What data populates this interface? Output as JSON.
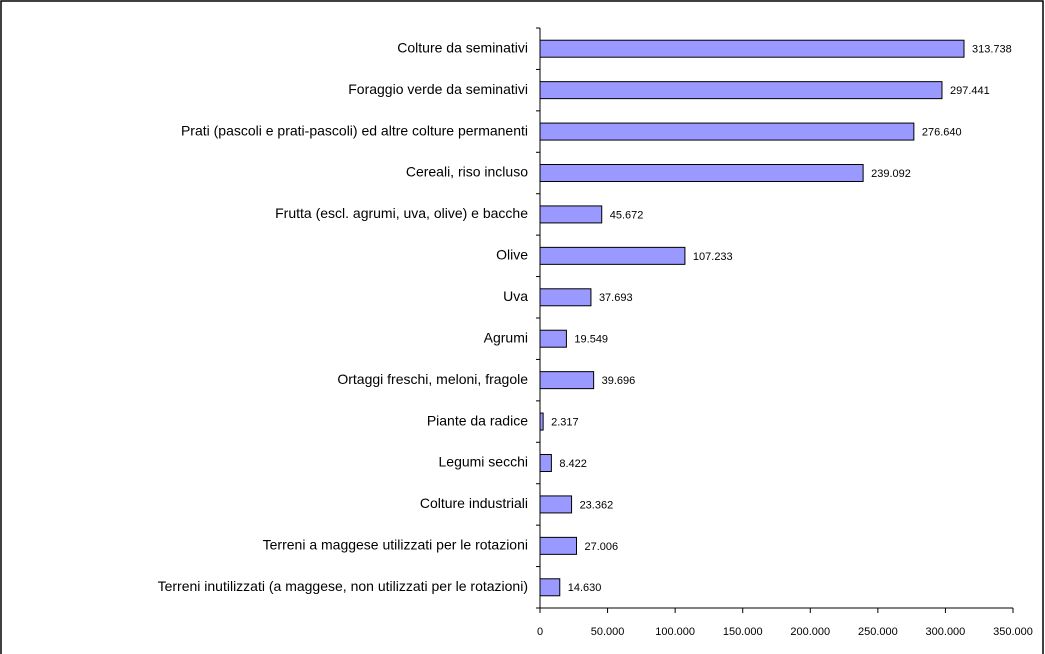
{
  "chart_data": {
    "type": "bar",
    "orientation": "horizontal",
    "categories": [
      "Colture da seminativi",
      "Foraggio verde da seminativi",
      "Prati (pascoli e prati-pascoli) ed altre colture permanenti",
      "Cereali, riso incluso",
      "Frutta (escl. agrumi, uva, olive) e bacche",
      "Olive",
      "Uva",
      "Agrumi",
      "Ortaggi freschi, meloni, fragole",
      "Piante da radice",
      "Legumi secchi",
      "Colture industriali",
      "Terreni a maggese utilizzati per le rotazioni",
      "Terreni inutilizzati (a maggese, non utilizzati per le rotazioni)"
    ],
    "values": [
      313738,
      297441,
      276640,
      239092,
      45672,
      107233,
      37693,
      19549,
      39696,
      2317,
      8422,
      23362,
      27006,
      14630
    ],
    "value_labels": [
      "313.738",
      "297.441",
      "276.640",
      "239.092",
      "45.672",
      "107.233",
      "37.693",
      "19.549",
      "39.696",
      "2.317",
      "8.422",
      "23.362",
      "27.006",
      "14.630"
    ],
    "color": "#9999ff",
    "xlim": [
      0,
      350000
    ],
    "xticks": [
      0,
      {
        "value": 50000,
        "label": "50.000"
      },
      {
        "value": 100000,
        "label": "100.000"
      },
      {
        "value": 150000,
        "label": "150.000"
      },
      {
        "value": 200000,
        "label": "200.000"
      },
      {
        "value": 250000,
        "label": "250.000"
      },
      {
        "value": 300000,
        "label": "300.000"
      },
      {
        "value": 350000,
        "label": "350.000"
      }
    ]
  }
}
